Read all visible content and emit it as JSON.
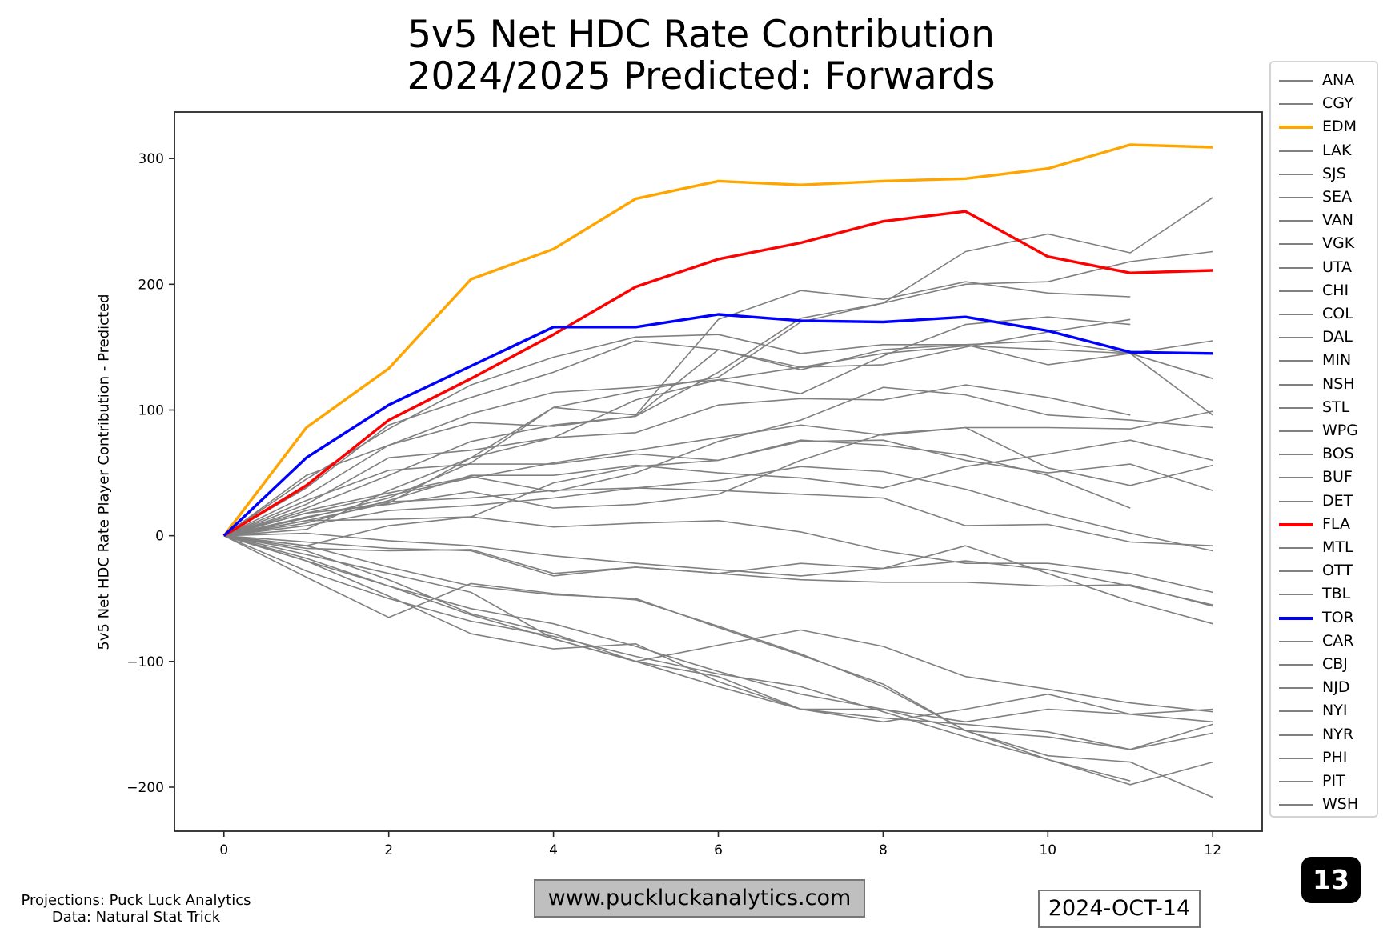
{
  "title_line1": "5v5 Net HDC Rate Contribution",
  "title_line2": "2024/2025 Predicted: Forwards",
  "footer": {
    "credit_line1": "Projections: Puck Luck Analytics",
    "credit_line2": "Data: Natural Stat Trick",
    "website": "www.puckluckanalytics.com",
    "date": "2024-OCT-14",
    "badge": "13"
  },
  "chart_data": {
    "type": "line",
    "title": "5v5 Net HDC Rate Contribution 2024/2025 Predicted: Forwards",
    "xlabel": "",
    "ylabel": "5v5 Net HDC Rate Player Contribution - Predicted",
    "xlim": [
      -0.6,
      12.6
    ],
    "ylim": [
      -235,
      337
    ],
    "xticks": [
      0,
      2,
      4,
      6,
      8,
      10,
      12
    ],
    "yticks": [
      -200,
      -100,
      0,
      100,
      200,
      300
    ],
    "ytick_labels": [
      "−200",
      "−100",
      "0",
      "100",
      "200",
      "300"
    ],
    "grid": false,
    "legend_placement": "outside-right",
    "colors": {
      "default": "#808080",
      "EDM": "#ffa500",
      "FLA": "#ff0000",
      "TOR": "#0000ff"
    },
    "series": [
      {
        "name": "ANA",
        "highlight": false,
        "values": [
          0,
          -8,
          -25,
          -40,
          -47,
          -50,
          -73,
          -95,
          -118,
          -155,
          -178,
          -198,
          -180
        ]
      },
      {
        "name": "CGY",
        "highlight": false,
        "values": [
          0,
          12,
          13,
          15,
          7,
          10,
          12,
          3,
          -12,
          -22,
          -22,
          -30,
          -45
        ]
      },
      {
        "name": "EDM",
        "highlight": true,
        "values": [
          0,
          86,
          133,
          204,
          228,
          268,
          282,
          279,
          282,
          284,
          292,
          311,
          309
        ]
      },
      {
        "name": "LAK",
        "highlight": false,
        "values": [
          0,
          28,
          52,
          57,
          57,
          65,
          60,
          75,
          76,
          60,
          50,
          57,
          36
        ]
      },
      {
        "name": "SJS",
        "highlight": false,
        "values": [
          0,
          -33,
          -65,
          -38,
          -46,
          -51,
          -72,
          -94,
          -120,
          -155,
          -175,
          -180,
          -208
        ]
      },
      {
        "name": "SEA",
        "highlight": false,
        "values": [
          0,
          15,
          27,
          30,
          36,
          38,
          36,
          33,
          30,
          8,
          9,
          -5,
          -8
        ]
      },
      {
        "name": "VAN",
        "highlight": false,
        "values": [
          0,
          22,
          48,
          75,
          88,
          95,
          130,
          173,
          185,
          226,
          240,
          225,
          269
        ]
      },
      {
        "name": "VGK",
        "highlight": false,
        "values": [
          0,
          48,
          72,
          90,
          87,
          95,
          148,
          132,
          148,
          152,
          155,
          145,
          125
        ]
      },
      {
        "name": "UTA",
        "highlight": false,
        "values": [
          0,
          10,
          28,
          48,
          48,
          56,
          50,
          46,
          38,
          55,
          65,
          76,
          60
        ]
      },
      {
        "name": "CHI",
        "highlight": false,
        "values": [
          0,
          -15,
          -30,
          -45,
          -82,
          -100,
          -87,
          -75,
          -88,
          -112,
          -122,
          -133,
          -140
        ]
      },
      {
        "name": "COL",
        "highlight": false,
        "values": [
          0,
          45,
          85,
          120,
          142,
          158,
          160,
          145,
          152,
          152,
          136,
          145,
          155
        ]
      },
      {
        "name": "DAL",
        "highlight": false,
        "values": [
          0,
          32,
          72,
          97,
          114,
          118,
          124,
          113,
          143,
          168,
          174,
          168,
          null
        ]
      },
      {
        "name": "MIN",
        "highlight": false,
        "values": [
          0,
          25,
          62,
          68,
          78,
          82,
          104,
          109,
          108,
          120,
          110,
          96,
          null
        ]
      },
      {
        "name": "NSH",
        "highlight": false,
        "values": [
          0,
          38,
          88,
          110,
          130,
          155,
          148,
          134,
          136,
          150,
          162,
          172,
          null
        ]
      },
      {
        "name": "STL",
        "highlight": false,
        "values": [
          0,
          -8,
          8,
          15,
          42,
          55,
          60,
          76,
          72,
          64,
          48,
          22,
          null
        ]
      },
      {
        "name": "WPG",
        "highlight": false,
        "values": [
          0,
          20,
          34,
          47,
          35,
          50,
          75,
          92,
          118,
          112,
          96,
          92,
          86
        ]
      },
      {
        "name": "BOS",
        "highlight": false,
        "values": [
          0,
          14,
          30,
          58,
          102,
          115,
          126,
          170,
          185,
          200,
          202,
          218,
          226
        ]
      },
      {
        "name": "BUF",
        "highlight": false,
        "values": [
          0,
          5,
          36,
          62,
          102,
          96,
          172,
          195,
          188,
          202,
          193,
          190,
          null
        ]
      },
      {
        "name": "DET",
        "highlight": false,
        "values": [
          0,
          18,
          32,
          46,
          58,
          68,
          78,
          88,
          80,
          86,
          86,
          85,
          99
        ]
      },
      {
        "name": "FLA",
        "highlight": true,
        "values": [
          0,
          40,
          92,
          125,
          160,
          198,
          220,
          233,
          250,
          258,
          222,
          209,
          211
        ]
      },
      {
        "name": "MTL",
        "highlight": false,
        "values": [
          0,
          -10,
          -12,
          -11,
          -30,
          -25,
          -30,
          -22,
          -26,
          -8,
          -30,
          -52,
          -70
        ]
      },
      {
        "name": "OTT",
        "highlight": false,
        "values": [
          0,
          8,
          20,
          24,
          30,
          38,
          44,
          55,
          51,
          37,
          18,
          2,
          -12
        ]
      },
      {
        "name": "TBL",
        "highlight": false,
        "values": [
          0,
          2,
          -4,
          -8,
          -16,
          -22,
          -27,
          -32,
          -26,
          -20,
          -27,
          -40,
          -55
        ]
      },
      {
        "name": "TOR",
        "highlight": true,
        "values": [
          0,
          62,
          104,
          135,
          166,
          166,
          176,
          171,
          170,
          174,
          163,
          146,
          145
        ]
      },
      {
        "name": "CAR",
        "highlight": false,
        "values": [
          0,
          18,
          25,
          35,
          22,
          25,
          33,
          60,
          81,
          86,
          54,
          40,
          56
        ]
      },
      {
        "name": "CBJ",
        "highlight": false,
        "values": [
          0,
          -5,
          -10,
          -12,
          -32,
          -25,
          -30,
          -35,
          -37,
          -37,
          -40,
          -39,
          -56
        ]
      },
      {
        "name": "NJD",
        "highlight": false,
        "values": [
          0,
          -18,
          -40,
          -58,
          -70,
          -88,
          -108,
          -126,
          -138,
          -155,
          -160,
          -170,
          -150
        ]
      },
      {
        "name": "NYI",
        "highlight": false,
        "values": [
          0,
          -20,
          -48,
          -78,
          -90,
          -86,
          -116,
          -138,
          -148,
          -138,
          -126,
          -142,
          -138
        ]
      },
      {
        "name": "NYR",
        "highlight": false,
        "values": [
          0,
          -12,
          -35,
          -62,
          -78,
          -100,
          -112,
          -138,
          -138,
          -148,
          -138,
          -142,
          -148
        ]
      },
      {
        "name": "PHI",
        "highlight": false,
        "values": [
          0,
          -20,
          -40,
          -63,
          -82,
          -100,
          -120,
          -138,
          -145,
          -150,
          -156,
          -170,
          -157
        ]
      },
      {
        "name": "PIT",
        "highlight": false,
        "values": [
          0,
          -28,
          -50,
          -68,
          -80,
          -96,
          -110,
          -120,
          -140,
          -160,
          -178,
          -195,
          null
        ]
      },
      {
        "name": "WSH",
        "highlight": false,
        "values": [
          0,
          12,
          26,
          62,
          78,
          108,
          124,
          134,
          145,
          151,
          148,
          145,
          96
        ]
      }
    ]
  }
}
